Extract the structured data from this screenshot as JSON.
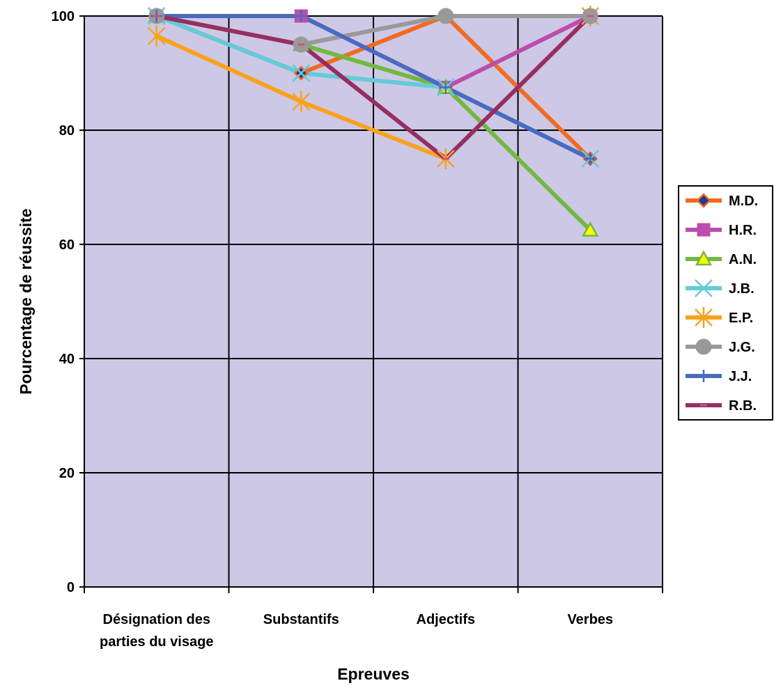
{
  "chart_data": {
    "type": "line",
    "title": "",
    "xlabel": "Epreuves",
    "ylabel": "Pourcentage de réussite",
    "categories": [
      [
        "Désignation des",
        "parties du visage"
      ],
      [
        "Substantifs"
      ],
      [
        "Adjectifs"
      ],
      [
        "Verbes"
      ]
    ],
    "ylim": [
      0,
      100
    ],
    "yticks": [
      0,
      20,
      40,
      60,
      80,
      100
    ],
    "grid": true,
    "legend_position": "right",
    "plot_background": "#ccc8e5",
    "series": [
      {
        "name": "M.D.",
        "values": [
          100,
          90,
          100,
          75
        ],
        "color": "#f26b21",
        "marker": "diamond",
        "marker_fill": "#1f3a93"
      },
      {
        "name": "H.R.",
        "values": [
          100,
          100,
          87.5,
          100
        ],
        "color": "#bd4cad",
        "marker": "square",
        "marker_fill": "#bd4cad"
      },
      {
        "name": "A.N.",
        "values": [
          100,
          95,
          87.5,
          62.5
        ],
        "color": "#72b840",
        "marker": "triangle",
        "marker_fill": "#ffff00"
      },
      {
        "name": "J.B.",
        "values": [
          100,
          90,
          87.5,
          75
        ],
        "color": "#63cbd9",
        "marker": "x",
        "marker_fill": "none"
      },
      {
        "name": "E.P.",
        "values": [
          96.5,
          85,
          75,
          100
        ],
        "color": "#f9a21e",
        "marker": "star",
        "marker_fill": "none"
      },
      {
        "name": "J.G.",
        "values": [
          100,
          95,
          100,
          100
        ],
        "color": "#999999",
        "marker": "circle",
        "marker_fill": "#999999"
      },
      {
        "name": "J.J.",
        "values": [
          100,
          100,
          87.5,
          75
        ],
        "color": "#4a6ac1",
        "marker": "plus",
        "marker_fill": "none"
      },
      {
        "name": "R.B.",
        "values": [
          100,
          95,
          75,
          100
        ],
        "color": "#962e62",
        "marker": "dash",
        "marker_fill": "none"
      }
    ]
  }
}
